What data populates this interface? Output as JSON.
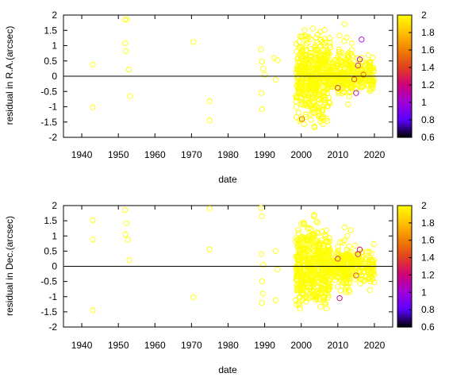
{
  "chart_data": [
    {
      "type": "scatter",
      "ylabel": "residual in R.A.(arcsec)",
      "xlabel": "date",
      "xlim": [
        1935,
        2025
      ],
      "ylim": [
        -2,
        2
      ],
      "xticks": [
        "1940",
        "1950",
        "1960",
        "1970",
        "1980",
        "1990",
        "2000",
        "2010",
        "2020"
      ],
      "yticks": [
        "-2",
        "-1.5",
        "-1",
        "-0.5",
        "0",
        "0.5",
        "1",
        "1.5",
        "2"
      ],
      "grid": false,
      "reference_line_y": 0,
      "marker": "open-circle",
      "colorbar": {
        "range": [
          0.6,
          2
        ],
        "ticks": [
          "0.6",
          "0.8",
          "1",
          "1.2",
          "1.4",
          "1.6",
          "1.8",
          "2"
        ],
        "colors": [
          "#000000",
          "#5a00ff",
          "#a000d8",
          "#d0007a",
          "#e04020",
          "#f08000",
          "#ffc000",
          "#ffff00"
        ]
      },
      "points": [
        {
          "x": 1943,
          "y": 0.38,
          "c": 2
        },
        {
          "x": 1943,
          "y": -1.02,
          "c": 2
        },
        {
          "x": 1951.8,
          "y": 1.85,
          "c": 2
        },
        {
          "x": 1952.4,
          "y": 1.85,
          "c": 2
        },
        {
          "x": 1951.9,
          "y": 1.08,
          "c": 2
        },
        {
          "x": 1952.1,
          "y": 0.82,
          "c": 2
        },
        {
          "x": 1952.9,
          "y": 0.22,
          "c": 2
        },
        {
          "x": 1953.2,
          "y": -0.65,
          "c": 2
        },
        {
          "x": 1970.5,
          "y": 1.12,
          "c": 2
        },
        {
          "x": 1975,
          "y": -0.82,
          "c": 2
        },
        {
          "x": 1975,
          "y": -1.45,
          "c": 2
        },
        {
          "x": 1989,
          "y": 0.88,
          "c": 2
        },
        {
          "x": 1989.2,
          "y": 0.48,
          "c": 2
        },
        {
          "x": 1989.6,
          "y": 0.25,
          "c": 2
        },
        {
          "x": 1990,
          "y": 0.05,
          "c": 2
        },
        {
          "x": 1989.1,
          "y": -0.55,
          "c": 2
        },
        {
          "x": 1989.3,
          "y": -1.08,
          "c": 2
        },
        {
          "x": 1992.5,
          "y": 0.6,
          "c": 2
        },
        {
          "x": 1993.5,
          "y": 0.52,
          "c": 2
        },
        {
          "x": 1993,
          "y": -0.12,
          "c": 2
        },
        {
          "x": 2000.2,
          "y": -1.4,
          "c": 1.5
        },
        {
          "x": 2010,
          "y": -0.38,
          "c": 1.3
        },
        {
          "x": 2014.5,
          "y": -0.1,
          "c": 1.4
        },
        {
          "x": 2015.5,
          "y": 0.35,
          "c": 1.3
        },
        {
          "x": 2016,
          "y": 0.55,
          "c": 1.2
        },
        {
          "x": 2015,
          "y": -0.55,
          "c": 1.1
        },
        {
          "x": 2016.5,
          "y": 1.2,
          "c": 1.0
        },
        {
          "x": 2017,
          "y": 0.05,
          "c": 1.5
        }
      ],
      "dense_clusters": [
        {
          "x": [
            1998.5,
            2008
          ],
          "y": [
            -1.95,
            1.95
          ],
          "n": 450,
          "c": 2
        },
        {
          "x": [
            2008,
            2012
          ],
          "y": [
            -0.7,
            0.7
          ],
          "n": 90,
          "c": 2
        },
        {
          "x": [
            2010,
            2014
          ],
          "y": [
            -1.6,
            1.95
          ],
          "n": 50,
          "c": 2
        },
        {
          "x": [
            2012,
            2020
          ],
          "y": [
            -0.9,
            0.9
          ],
          "n": 150,
          "c": 2
        }
      ]
    },
    {
      "type": "scatter",
      "ylabel": "residual in Dec.(arcsec)",
      "xlabel": "date",
      "xlim": [
        1935,
        2025
      ],
      "ylim": [
        -2,
        2
      ],
      "xticks": [
        "1940",
        "1950",
        "1960",
        "1970",
        "1980",
        "1990",
        "2000",
        "2010",
        "2020"
      ],
      "yticks": [
        "-2",
        "-1.5",
        "-1",
        "-0.5",
        "0",
        "0.5",
        "1",
        "1.5",
        "2"
      ],
      "grid": false,
      "reference_line_y": 0,
      "marker": "open-circle",
      "colorbar": {
        "range": [
          0.6,
          2
        ],
        "ticks": [
          "0.6",
          "0.8",
          "1",
          "1.2",
          "1.4",
          "1.6",
          "1.8",
          "2"
        ],
        "colors": [
          "#000000",
          "#5a00ff",
          "#a000d8",
          "#d0007a",
          "#e04020",
          "#f08000",
          "#ffc000",
          "#ffff00"
        ]
      },
      "points": [
        {
          "x": 1943,
          "y": 1.52,
          "c": 2
        },
        {
          "x": 1943,
          "y": 0.88,
          "c": 2
        },
        {
          "x": 1943,
          "y": -1.45,
          "c": 2
        },
        {
          "x": 1951.8,
          "y": 1.85,
          "c": 2
        },
        {
          "x": 1952.2,
          "y": 1.42,
          "c": 2
        },
        {
          "x": 1951.9,
          "y": 1.05,
          "c": 2
        },
        {
          "x": 1952.6,
          "y": 0.88,
          "c": 2
        },
        {
          "x": 1953,
          "y": 0.2,
          "c": 2
        },
        {
          "x": 1970.5,
          "y": -1.02,
          "c": 2
        },
        {
          "x": 1975,
          "y": 1.9,
          "c": 2
        },
        {
          "x": 1975,
          "y": 0.55,
          "c": 2
        },
        {
          "x": 1989,
          "y": 1.92,
          "c": 2
        },
        {
          "x": 1989.2,
          "y": 1.65,
          "c": 2
        },
        {
          "x": 1989.6,
          "y": 0.05,
          "c": 2
        },
        {
          "x": 1989.1,
          "y": 0.4,
          "c": 2
        },
        {
          "x": 1989.3,
          "y": -0.5,
          "c": 2
        },
        {
          "x": 1989.5,
          "y": -0.9,
          "c": 2
        },
        {
          "x": 1989.2,
          "y": -1.2,
          "c": 2
        },
        {
          "x": 1993,
          "y": 0.5,
          "c": 2
        },
        {
          "x": 1993.5,
          "y": -0.1,
          "c": 2
        },
        {
          "x": 1993,
          "y": -1.12,
          "c": 2
        },
        {
          "x": 2010.5,
          "y": -1.05,
          "c": 1.2
        },
        {
          "x": 2015.5,
          "y": 0.4,
          "c": 1.3
        },
        {
          "x": 2016,
          "y": 0.55,
          "c": 1.2
        },
        {
          "x": 2015,
          "y": -0.3,
          "c": 1.4
        },
        {
          "x": 2010,
          "y": 0.25,
          "c": 1.3
        }
      ],
      "dense_clusters": [
        {
          "x": [
            1998.5,
            2008
          ],
          "y": [
            -1.95,
            1.95
          ],
          "n": 450,
          "c": 2
        },
        {
          "x": [
            2008,
            2012
          ],
          "y": [
            -0.7,
            0.7
          ],
          "n": 90,
          "c": 2
        },
        {
          "x": [
            2010,
            2014
          ],
          "y": [
            -1.6,
            1.6
          ],
          "n": 50,
          "c": 2
        },
        {
          "x": [
            2012,
            2020
          ],
          "y": [
            -0.9,
            0.9
          ],
          "n": 150,
          "c": 2
        }
      ]
    }
  ]
}
